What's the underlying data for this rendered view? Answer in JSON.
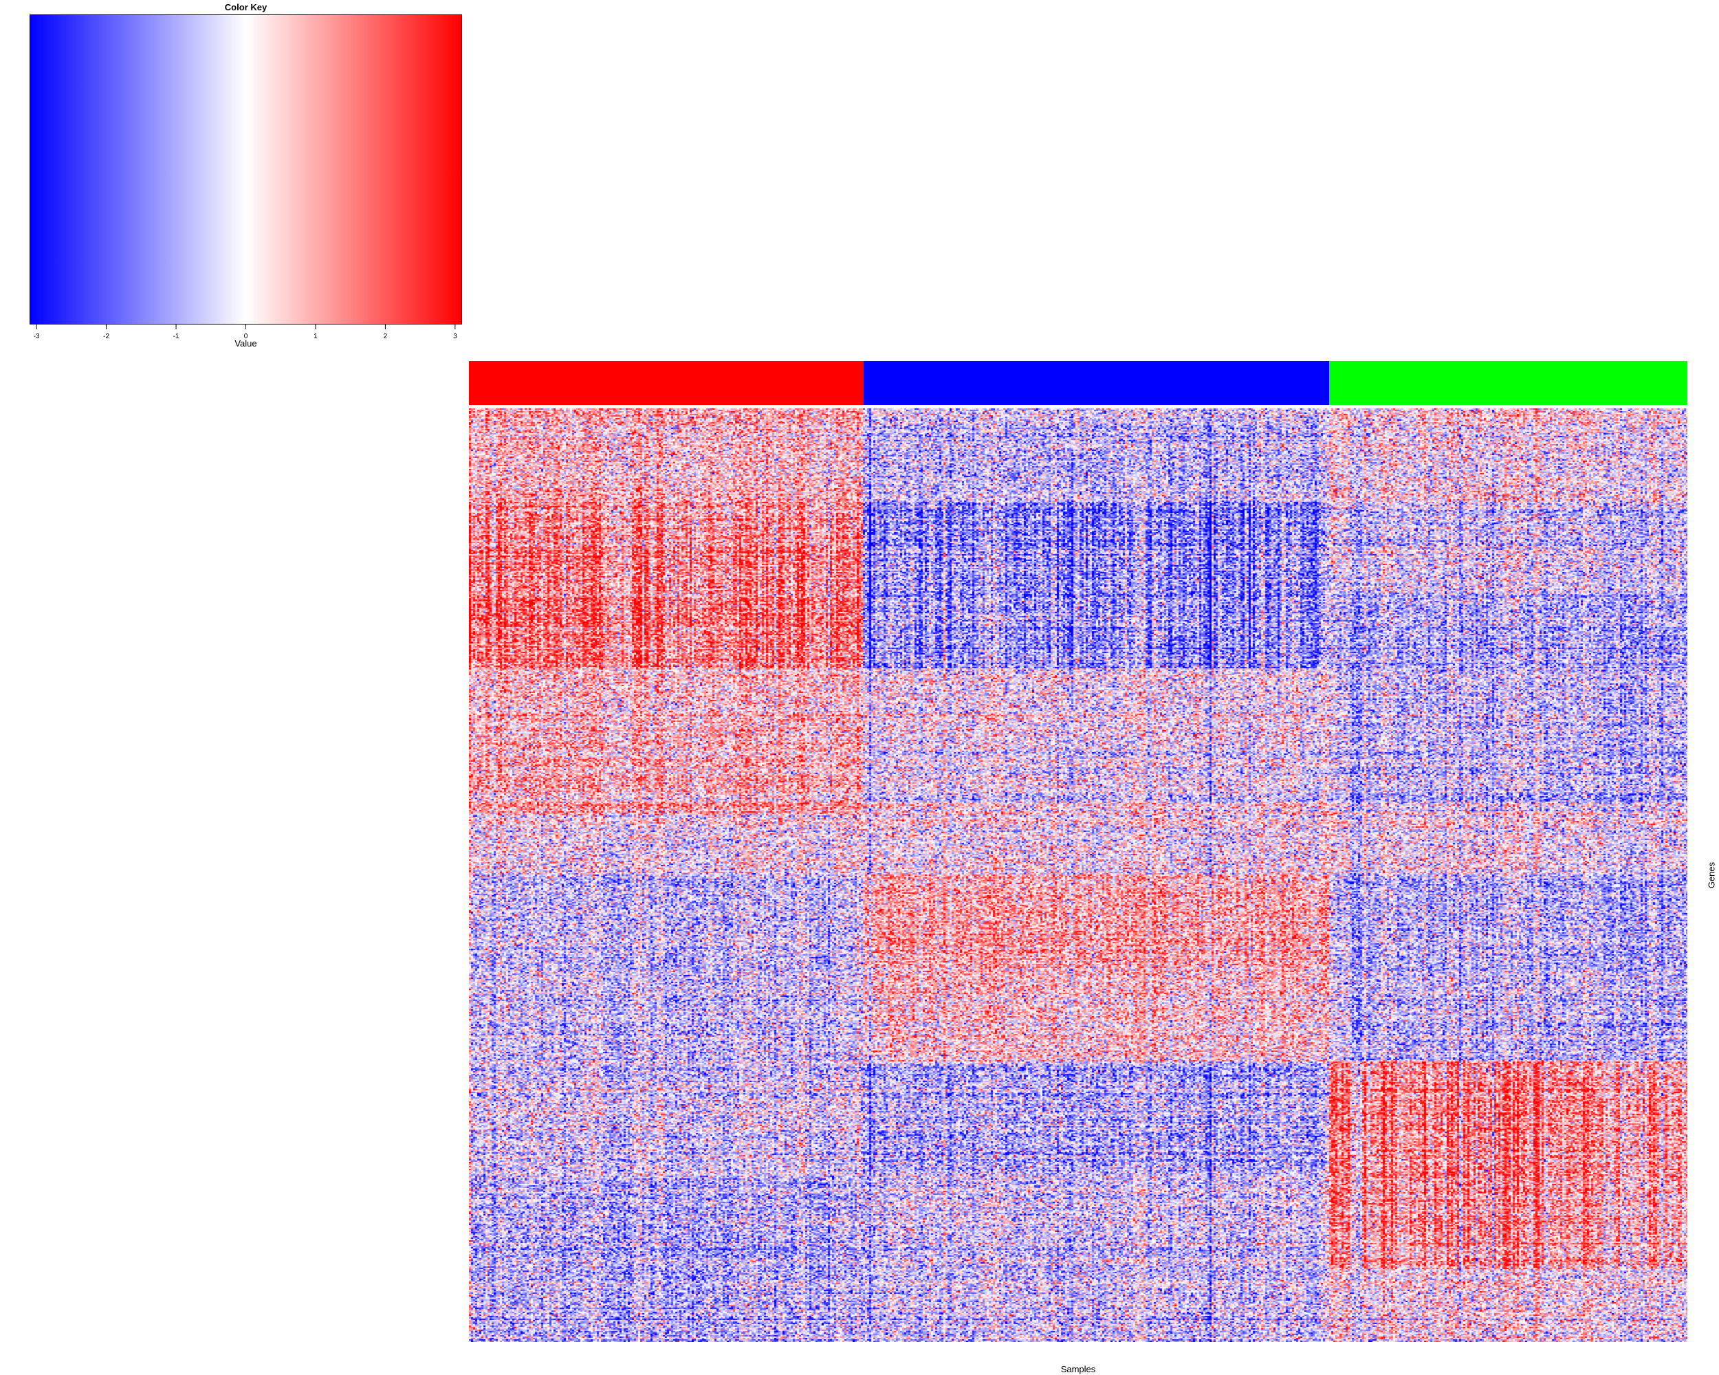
{
  "chart_data": {
    "type": "heatmap",
    "title": "",
    "xlabel": "Samples",
    "ylabel": "Genes",
    "color_key": {
      "title": "Color Key",
      "xlabel": "Value",
      "range": [
        -3.1,
        3.1
      ],
      "ticks": [
        -3,
        -2,
        -1,
        0,
        1,
        2,
        3
      ],
      "tick_labels": [
        "-3",
        "-2",
        "-1",
        "0",
        "1",
        "2",
        "3"
      ],
      "colors": {
        "low": "#0000ff",
        "mid": "#ffffff",
        "high": "#ff0000"
      }
    },
    "column_groups": [
      {
        "color": "#ff0000",
        "fraction": 0.324
      },
      {
        "color": "#0000ff",
        "fraction": 0.382
      },
      {
        "color": "#00ff00",
        "fraction": 0.294
      }
    ],
    "row_blocks": [
      {
        "rows": 0.09,
        "group_means": [
          0.7,
          -0.6,
          0.1
        ]
      },
      {
        "rows": 0.09,
        "group_means": [
          1.4,
          -1.3,
          -0.4
        ]
      },
      {
        "rows": 0.07,
        "group_means": [
          1.6,
          -1.2,
          -1.0
        ]
      },
      {
        "rows": 0.07,
        "group_means": [
          0.6,
          0.0,
          -0.7
        ]
      },
      {
        "rows": 0.07,
        "group_means": [
          0.9,
          -0.1,
          -0.6
        ]
      },
      {
        "rows": 0.06,
        "group_means": [
          0.1,
          0.1,
          0.0
        ]
      },
      {
        "rows": 0.09,
        "group_means": [
          -0.6,
          1.0,
          -0.8
        ]
      },
      {
        "rows": 0.09,
        "group_means": [
          -0.5,
          0.6,
          -0.6
        ]
      },
      {
        "rows": 0.11,
        "group_means": [
          -0.4,
          -0.9,
          1.3
        ]
      },
      {
        "rows": 0.09,
        "group_means": [
          -0.8,
          -0.4,
          1.1
        ]
      },
      {
        "rows": 0.07,
        "group_means": [
          -0.7,
          -0.4,
          0.2
        ]
      }
    ]
  }
}
